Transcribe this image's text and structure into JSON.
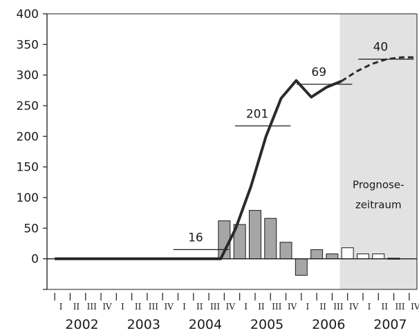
{
  "chart_data": {
    "type": "bar",
    "title": "",
    "xlabel": "",
    "ylabel": "",
    "ylim": [
      -50,
      400
    ],
    "yticks": [
      0,
      50,
      100,
      150,
      200,
      250,
      300,
      350,
      400
    ],
    "grid": false,
    "quarter_labels": [
      "I",
      "II",
      "III",
      "IV"
    ],
    "years": [
      "2002",
      "2003",
      "2004",
      "2005",
      "2006",
      "2007"
    ],
    "forecast_region": {
      "label_lines": [
        "Prognose-",
        "zeitraum"
      ],
      "fill": "#e2e2e2",
      "from_quarter_index": 19
    },
    "bars": {
      "values": [
        0,
        0,
        0,
        0,
        0,
        0,
        0,
        0,
        0,
        0,
        0,
        62,
        56,
        79,
        66,
        27,
        -27,
        15,
        8,
        18,
        8,
        8,
        1
      ],
      "actual_color": "#a6a6a6",
      "forecast_color": "#ffffff",
      "first_forecast_index": 19
    },
    "line": {
      "values": [
        0,
        0,
        0,
        0,
        0,
        0,
        0,
        0,
        0,
        0,
        0,
        0,
        50,
        118,
        200,
        262,
        291,
        264,
        280,
        290,
        306,
        318,
        326,
        329,
        329
      ],
      "first_forecast_point": 20,
      "color": "#2a2a2a"
    },
    "year_averages": [
      {
        "label": "16",
        "value": 15,
        "from_quarter": 8,
        "to_quarter": 11
      },
      {
        "label": "201",
        "value": 217,
        "from_quarter": 12,
        "to_quarter": 15
      },
      {
        "label": "69",
        "value": 285,
        "from_quarter": 16,
        "to_quarter": 19
      },
      {
        "label": "40",
        "value": 326,
        "from_quarter": 20,
        "to_quarter": 23
      }
    ]
  }
}
